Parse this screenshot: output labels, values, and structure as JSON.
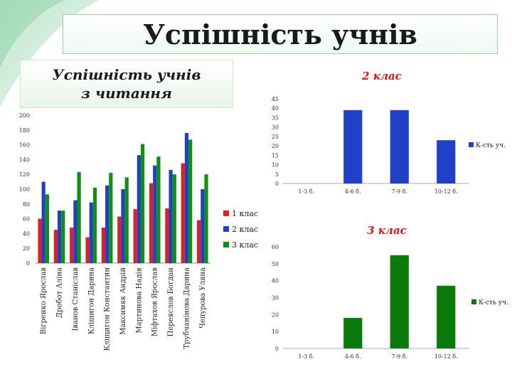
{
  "slide": {
    "title": "Успішність учнів",
    "subtitle": "Успішність учнів\nз читання",
    "colors": {
      "class1": "#e02020",
      "class2": "#2040c8",
      "class3": "#109010",
      "class3_single": "#0a7a0a"
    }
  },
  "chart_data": [
    {
      "type": "bar",
      "title": "",
      "categories": [
        "Вігренко Ярослав",
        "Дробот Аліна",
        "Іванов Станіслав",
        "Клішигон Дарина",
        "Кліщигон Константин",
        "Максимяк Андрій",
        "Мартинова Надія",
        "Міфтахов Ярослав",
        "Переяслов Богдан",
        "Трубчанінова Дарина",
        "Чепурова Уляна"
      ],
      "series": [
        {
          "name": "1 клас",
          "values": [
            60,
            45,
            48,
            35,
            48,
            63,
            73,
            108,
            74,
            135,
            58
          ]
        },
        {
          "name": "2 клас",
          "values": [
            110,
            71,
            85,
            82,
            105,
            100,
            146,
            132,
            126,
            176,
            100
          ]
        },
        {
          "name": "3 клас",
          "values": [
            93,
            71,
            123,
            102,
            122,
            116,
            161,
            144,
            120,
            167,
            120
          ]
        }
      ],
      "ylim": [
        0,
        200
      ],
      "yticks": [
        0,
        20,
        40,
        60,
        80,
        100,
        120,
        140,
        160,
        180,
        200
      ],
      "legend": "right",
      "grid": false
    },
    {
      "type": "bar",
      "title": "2 клас",
      "categories": [
        "1-3 б.",
        "4-6 б.",
        "7-9 б.",
        "10-12 б."
      ],
      "series": [
        {
          "name": "К-сть уч.",
          "values": [
            0,
            39,
            39,
            23
          ]
        }
      ],
      "ylim": [
        0,
        45
      ],
      "yticks": [
        0,
        5,
        10,
        15,
        20,
        25,
        30,
        35,
        40,
        45
      ],
      "legend": "right",
      "grid": false
    },
    {
      "type": "bar",
      "title": "3 клас",
      "categories": [
        "1-3 б.",
        "4-6 б.",
        "7-9 б.",
        "10-12 б."
      ],
      "series": [
        {
          "name": "К-сть уч.",
          "values": [
            0,
            18,
            55,
            37
          ]
        }
      ],
      "ylim": [
        0,
        60
      ],
      "yticks": [
        0,
        10,
        20,
        30,
        40,
        50,
        60
      ],
      "legend": "right",
      "grid": false
    }
  ]
}
